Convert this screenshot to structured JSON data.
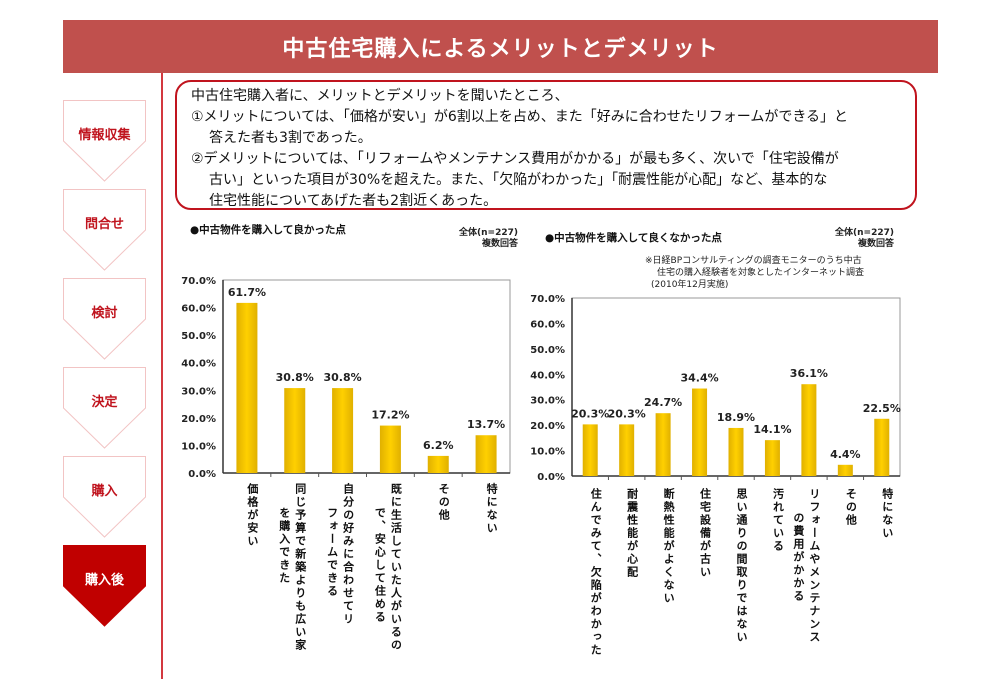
{
  "header": {
    "title": "中古住宅購入によるメリットとデメリット"
  },
  "sidebar": {
    "steps": [
      {
        "label": "情報収集",
        "active": false
      },
      {
        "label": "問合せ",
        "active": false
      },
      {
        "label": "検討",
        "active": false
      },
      {
        "label": "決定",
        "active": false
      },
      {
        "label": "購入",
        "active": false
      },
      {
        "label": "購入後",
        "active": true
      }
    ]
  },
  "summary": {
    "intro": "中古住宅購入者に、メリットとデメリットを聞いたところ、",
    "point1_line1": "①メリットについては、「価格が安い」が6割以上を占め、また「好みに合わせたリフォームができる」と",
    "point1_line2": "答えた者も3割であった。",
    "point2_line1": "②デメリットについては、「リフォームやメンテナンス費用がかかる」が最も多く、次いで「住宅設備が",
    "point2_line2": "古い」といった項目が30%を超えた。また、「欠陥がわかった」「耐震性能が心配」など、基本的な",
    "point2_line3": "住宅性能についてあげた者も2割近くあった。"
  },
  "notes": {
    "sample_left": "全体(n=227)",
    "multi_left": "複数回答",
    "sample_right": "全体(n=227)",
    "multi_right": "複数回答",
    "source_line1": "※日経BPコンサルティングの調査モニターのうち中古",
    "source_line2": "住宅の購入経験者を対象としたインターネット調査",
    "source_line3": "(2010年12月実施)"
  },
  "chart_data": [
    {
      "type": "bar",
      "title": "●中古物件を購入して良かった点",
      "xlabel": "",
      "ylabel": "",
      "ylim": [
        0,
        70
      ],
      "yticks": [
        "0.0%",
        "10.0%",
        "20.0%",
        "30.0%",
        "40.0%",
        "50.0%",
        "60.0%",
        "70.0%"
      ],
      "categories": [
        "価格が安い",
        "同じ予算で新築よりも広い家を購入できた",
        "自分の好みに合わせてリフォームできる",
        "既に生活していた人がいるので、安心して住める",
        "その他",
        "特にない"
      ],
      "category_lines": [
        [
          "価格が安い"
        ],
        [
          "同じ予算で新築よりも広い家",
          "を購入できた"
        ],
        [
          "自分の好みに合わせてリ",
          "フォームできる"
        ],
        [
          "既に生活していた人がいるの",
          "で、安心して住める"
        ],
        [
          "その他"
        ],
        [
          "特にない"
        ]
      ],
      "values": [
        61.7,
        30.8,
        30.8,
        17.2,
        6.2,
        13.7
      ],
      "labels": [
        "61.7%",
        "30.8%",
        "30.8%",
        "17.2%",
        "6.2%",
        "13.7%"
      ],
      "bar_color": "#f5c400",
      "grid": false,
      "legend": "none"
    },
    {
      "type": "bar",
      "title": "●中古物件を購入して良くなかった点",
      "xlabel": "",
      "ylabel": "",
      "ylim": [
        0,
        70
      ],
      "yticks": [
        "0.0%",
        "10.0%",
        "20.0%",
        "30.0%",
        "40.0%",
        "50.0%",
        "60.0%",
        "70.0%"
      ],
      "categories": [
        "住んでみて、欠陥がわかった",
        "耐震性能が心配",
        "断熱性能がよくない",
        "住宅設備が古い",
        "思い通りの間取りではない",
        "汚れている",
        "リフォームやメンテナンスの費用がかかる",
        "その他",
        "特にない"
      ],
      "category_lines": [
        [
          "住んでみて、欠陥がわかった"
        ],
        [
          "耐震性能が心配"
        ],
        [
          "断熱性能がよくない"
        ],
        [
          "住宅設備が古い"
        ],
        [
          "思い通りの間取りではない"
        ],
        [
          "汚れている"
        ],
        [
          "リフォームやメンテナンス",
          "の費用がかかる"
        ],
        [
          "その他"
        ],
        [
          "特にない"
        ]
      ],
      "values": [
        20.3,
        20.3,
        24.7,
        34.4,
        18.9,
        14.1,
        36.1,
        4.4,
        22.5
      ],
      "labels": [
        "20.3%",
        "20.3%",
        "24.7%",
        "34.4%",
        "18.9%",
        "14.1%",
        "36.1%",
        "4.4%",
        "22.5%"
      ],
      "bar_color": "#f5c400",
      "grid": false,
      "legend": "none"
    }
  ]
}
